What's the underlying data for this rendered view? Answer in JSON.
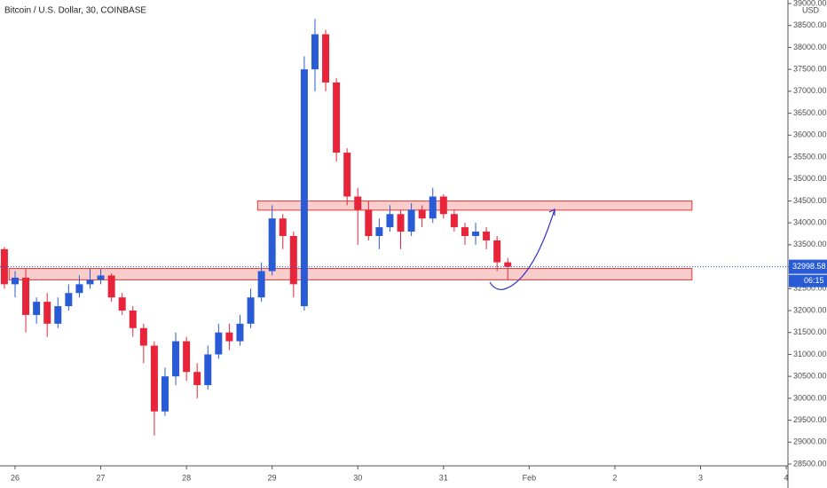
{
  "chart_data": {
    "type": "candlestick",
    "title": "Bitcoin / U.S. Dollar, 30, COINBASE",
    "currency": "USD",
    "countdown": "06:15",
    "up_color": "#2a5bd7",
    "down_color": "#e8243a",
    "zone_color": "#e53935",
    "x": [
      25.875,
      26,
      26.125,
      26.25,
      26.375,
      26.5,
      26.625,
      26.75,
      26.875,
      27,
      27.125,
      27.25,
      27.375,
      27.5,
      27.625,
      27.75,
      27.875,
      28,
      28.125,
      28.25,
      28.375,
      28.5,
      28.625,
      28.75,
      28.875,
      29,
      29.125,
      29.25,
      29.375,
      29.5,
      29.625,
      29.75,
      29.875,
      30,
      30.125,
      30.25,
      30.375,
      30.5,
      30.625,
      30.75,
      30.875,
      31,
      31.125,
      31.25,
      31.375,
      31.5,
      31.625,
      31.75
    ],
    "open": [
      33400,
      32600,
      32750,
      31900,
      32200,
      31700,
      32100,
      32400,
      32600,
      32700,
      32800,
      32300,
      32000,
      31600,
      31200,
      29700,
      30500,
      31300,
      30600,
      30300,
      31000,
      31500,
      31300,
      31700,
      32300,
      32900,
      34100,
      33700,
      32100,
      37500,
      38300,
      37200,
      35600,
      34600,
      34300,
      33700,
      33900,
      34200,
      33800,
      34300,
      34100,
      34600,
      34200,
      33900,
      33700,
      33800,
      33600,
      33100
    ],
    "high": [
      33450,
      32900,
      32950,
      32300,
      32400,
      32300,
      32600,
      32800,
      32950,
      32950,
      32850,
      32400,
      32100,
      31700,
      31300,
      30700,
      31500,
      31400,
      30800,
      31200,
      31700,
      31700,
      31900,
      32500,
      33100,
      34400,
      34200,
      33800,
      37800,
      38650,
      38400,
      37300,
      35700,
      34800,
      34500,
      34100,
      34400,
      34300,
      34450,
      34400,
      34800,
      34650,
      34300,
      34000,
      34000,
      33900,
      33700,
      33200
    ],
    "low": [
      32500,
      32300,
      31500,
      31700,
      31400,
      31600,
      32000,
      32300,
      32500,
      32600,
      32200,
      31900,
      31400,
      30800,
      29150,
      29600,
      30300,
      30400,
      30000,
      30200,
      30900,
      31100,
      31200,
      31600,
      32200,
      32800,
      33400,
      32300,
      32000,
      37000,
      37000,
      35400,
      34400,
      33500,
      33600,
      33400,
      33800,
      33400,
      33700,
      33900,
      34000,
      34100,
      33800,
      33500,
      33500,
      33400,
      32900,
      32700
    ],
    "close": [
      32600,
      32750,
      31900,
      32200,
      31700,
      32100,
      32400,
      32600,
      32700,
      32800,
      32300,
      32000,
      31600,
      31200,
      29700,
      30500,
      31300,
      30600,
      30300,
      31000,
      31500,
      31300,
      31700,
      32300,
      32900,
      34100,
      33700,
      32600,
      37500,
      38300,
      37200,
      35600,
      34600,
      34300,
      33700,
      33900,
      34200,
      33800,
      34300,
      34100,
      34600,
      34200,
      33900,
      33700,
      33800,
      33600,
      33100,
      32998.58
    ],
    "zones": [
      {
        "x0": 25.93,
        "x1": 33.9,
        "low": 32700,
        "high": 32960
      },
      {
        "x0": 28.83,
        "x1": 33.9,
        "low": 34290,
        "high": 34500
      }
    ],
    "xlim": [
      25.824,
      35.02
    ],
    "ylim": [
      28460,
      39081
    ],
    "xticks": [
      26,
      27,
      28,
      29,
      30,
      31,
      {
        "value": 32,
        "label": "Feb"
      },
      {
        "value": 33,
        "label": "2"
      },
      {
        "value": 34,
        "label": "3"
      },
      {
        "value": 35,
        "label": "4"
      }
    ],
    "yticks": [
      {
        "value": 28500,
        "label": "28500.00"
      },
      {
        "value": 29000,
        "label": "29000.00"
      },
      {
        "value": 29500,
        "label": "29500.00"
      },
      {
        "value": 30000,
        "label": "30000.00"
      },
      {
        "value": 30500,
        "label": "30500.00"
      },
      {
        "value": 31000,
        "label": "31000.00"
      },
      {
        "value": 31500,
        "label": "31500.00"
      },
      {
        "value": 32000,
        "label": "32000.00"
      },
      {
        "value": 32500,
        "label": "32500.00"
      },
      {
        "value": 33000,
        "label": "33000.00"
      },
      {
        "value": 33500,
        "label": "33500.00"
      },
      {
        "value": 34000,
        "label": "34000.00"
      },
      {
        "value": 34500,
        "label": "34500.00"
      },
      {
        "value": 35000,
        "label": "35000.00"
      },
      {
        "value": 35500,
        "label": "35500.00"
      },
      {
        "value": 36000,
        "label": "36000.00"
      },
      {
        "value": 36500,
        "label": "36500.00"
      },
      {
        "value": 37000,
        "label": "37000.00"
      },
      {
        "value": 37500,
        "label": "37500.00"
      },
      {
        "value": 38000,
        "label": "38000.00"
      },
      {
        "value": 38500,
        "label": "38500.00"
      },
      {
        "value": 39000,
        "label": "39000.00"
      }
    ]
  }
}
